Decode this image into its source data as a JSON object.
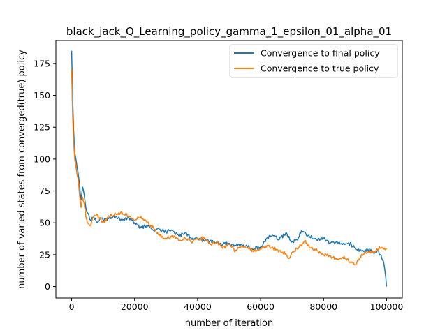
{
  "chart_data": {
    "type": "line",
    "title": "black_jack_Q_Learning_policy_gamma_1_epsilon_01_alpha_01",
    "xlabel": "number of iteration",
    "ylabel": "number of varied states from converged(true) policy",
    "xlim": [
      -5000,
      105000
    ],
    "ylim": [
      -9,
      193
    ],
    "xticks": [
      0,
      20000,
      40000,
      60000,
      80000,
      100000
    ],
    "xtick_labels": [
      "0",
      "20000",
      "40000",
      "60000",
      "80000",
      "100000"
    ],
    "yticks": [
      0,
      25,
      50,
      75,
      100,
      125,
      150,
      175
    ],
    "ytick_labels": [
      "0",
      "25",
      "50",
      "75",
      "100",
      "125",
      "150",
      "175"
    ],
    "grid": false,
    "legend_position": "top-right",
    "series": [
      {
        "name": "Convergence to final policy",
        "color": "#1f77b4",
        "x": [
          0,
          300,
          600,
          1000,
          1500,
          2000,
          2500,
          3000,
          3500,
          4000,
          4500,
          5000,
          6000,
          7000,
          8000,
          9000,
          10000,
          12000,
          14000,
          16000,
          18000,
          20000,
          22000,
          24000,
          26000,
          28000,
          30000,
          32000,
          34000,
          36000,
          38000,
          40000,
          42000,
          44000,
          46000,
          48000,
          50000,
          52000,
          54000,
          56000,
          58000,
          60000,
          62000,
          64000,
          66000,
          68000,
          70000,
          72000,
          73000,
          75000,
          78000,
          80000,
          82000,
          84000,
          86000,
          88000,
          90000,
          92000,
          94000,
          96000,
          97000,
          98000,
          99000,
          99500,
          100000
        ],
        "y": [
          185,
          150,
          125,
          105,
          98,
          90,
          80,
          68,
          78,
          72,
          62,
          58,
          52,
          55,
          50,
          54,
          52,
          54,
          55,
          52,
          54,
          50,
          46,
          48,
          44,
          45,
          43,
          44,
          40,
          42,
          38,
          38,
          36,
          36,
          34,
          33,
          34,
          32,
          33,
          31,
          30,
          31,
          38,
          40,
          37,
          42,
          35,
          38,
          44,
          40,
          36,
          38,
          34,
          35,
          33,
          34,
          30,
          28,
          29,
          27,
          28,
          25,
          20,
          12,
          0
        ]
      },
      {
        "name": "Convergence to true policy",
        "color": "#ff7f0e",
        "x": [
          0,
          300,
          600,
          1000,
          1500,
          2000,
          2500,
          3000,
          3500,
          4000,
          4500,
          5000,
          6000,
          7000,
          8000,
          9000,
          10000,
          12000,
          14000,
          16000,
          18000,
          20000,
          22000,
          24000,
          26000,
          28000,
          30000,
          32000,
          34000,
          36000,
          38000,
          40000,
          42000,
          44000,
          46000,
          48000,
          50000,
          52000,
          54000,
          56000,
          58000,
          60000,
          62000,
          64000,
          66000,
          68000,
          69000,
          70000,
          72000,
          74000,
          76000,
          78000,
          80000,
          82000,
          84000,
          86000,
          88000,
          90000,
          92000,
          94000,
          96000,
          98000,
          100000
        ],
        "y": [
          170,
          135,
          115,
          100,
          92,
          85,
          72,
          62,
          70,
          65,
          55,
          50,
          48,
          55,
          57,
          53,
          50,
          55,
          57,
          58,
          55,
          52,
          55,
          50,
          46,
          40,
          37,
          40,
          36,
          38,
          35,
          37,
          38,
          33,
          35,
          30,
          33,
          28,
          32,
          30,
          28,
          29,
          32,
          30,
          28,
          26,
          22,
          27,
          30,
          36,
          30,
          28,
          25,
          24,
          22,
          23,
          20,
          17,
          25,
          27,
          28,
          30,
          30
        ]
      }
    ]
  }
}
